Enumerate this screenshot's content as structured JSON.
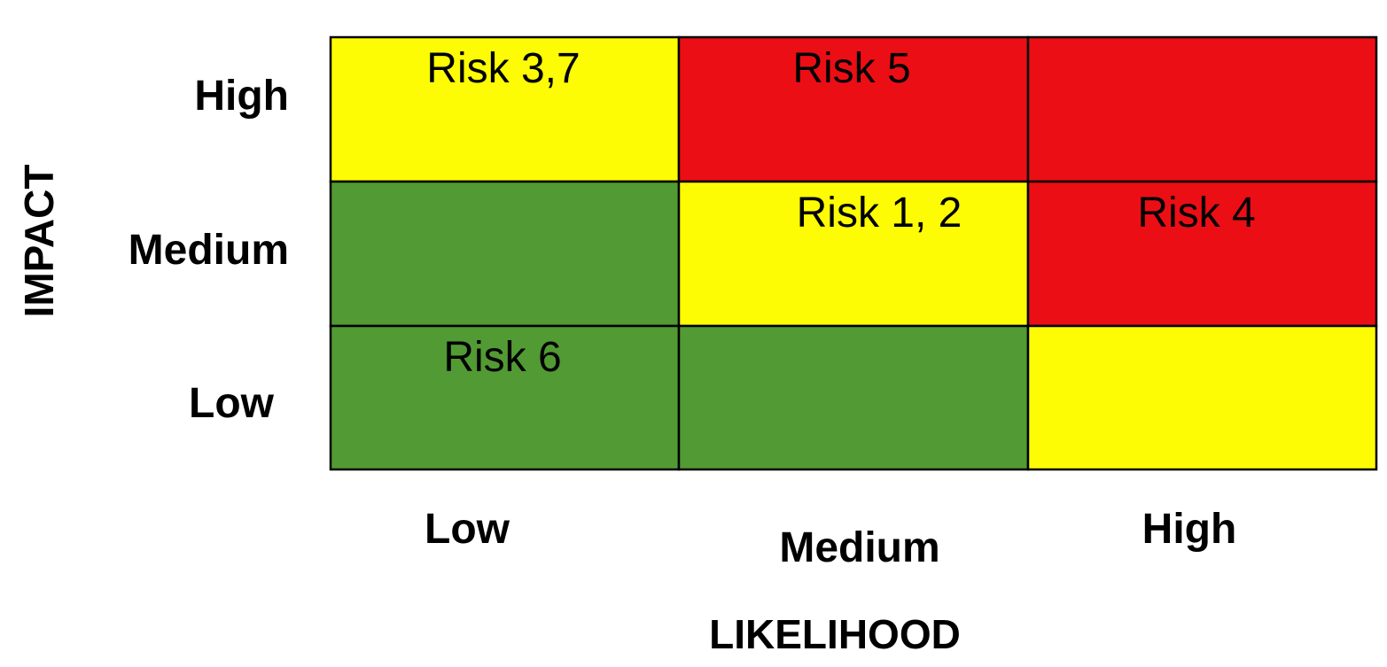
{
  "colors": {
    "red": "#ec0e15",
    "yellow": "#fdfc04",
    "green": "#529a33"
  },
  "axes": {
    "y_title": "IMPACT",
    "x_title": "LIKELIHOOD",
    "y_levels": [
      "High",
      "Medium",
      "Low"
    ],
    "x_levels": [
      "Low",
      "Medium",
      "High"
    ]
  },
  "cells": [
    {
      "impact": "High",
      "likelihood": "Low",
      "color": "yellow",
      "label": "Risk 3,7"
    },
    {
      "impact": "High",
      "likelihood": "Medium",
      "color": "red",
      "label": "Risk 5"
    },
    {
      "impact": "High",
      "likelihood": "High",
      "color": "red",
      "label": ""
    },
    {
      "impact": "Medium",
      "likelihood": "Low",
      "color": "green",
      "label": ""
    },
    {
      "impact": "Medium",
      "likelihood": "Medium",
      "color": "yellow",
      "label": "Risk 1, 2"
    },
    {
      "impact": "Medium",
      "likelihood": "High",
      "color": "red",
      "label": "Risk 4"
    },
    {
      "impact": "Low",
      "likelihood": "Low",
      "color": "green",
      "label": "Risk 6"
    },
    {
      "impact": "Low",
      "likelihood": "Medium",
      "color": "green",
      "label": ""
    },
    {
      "impact": "Low",
      "likelihood": "High",
      "color": "yellow",
      "label": ""
    }
  ]
}
